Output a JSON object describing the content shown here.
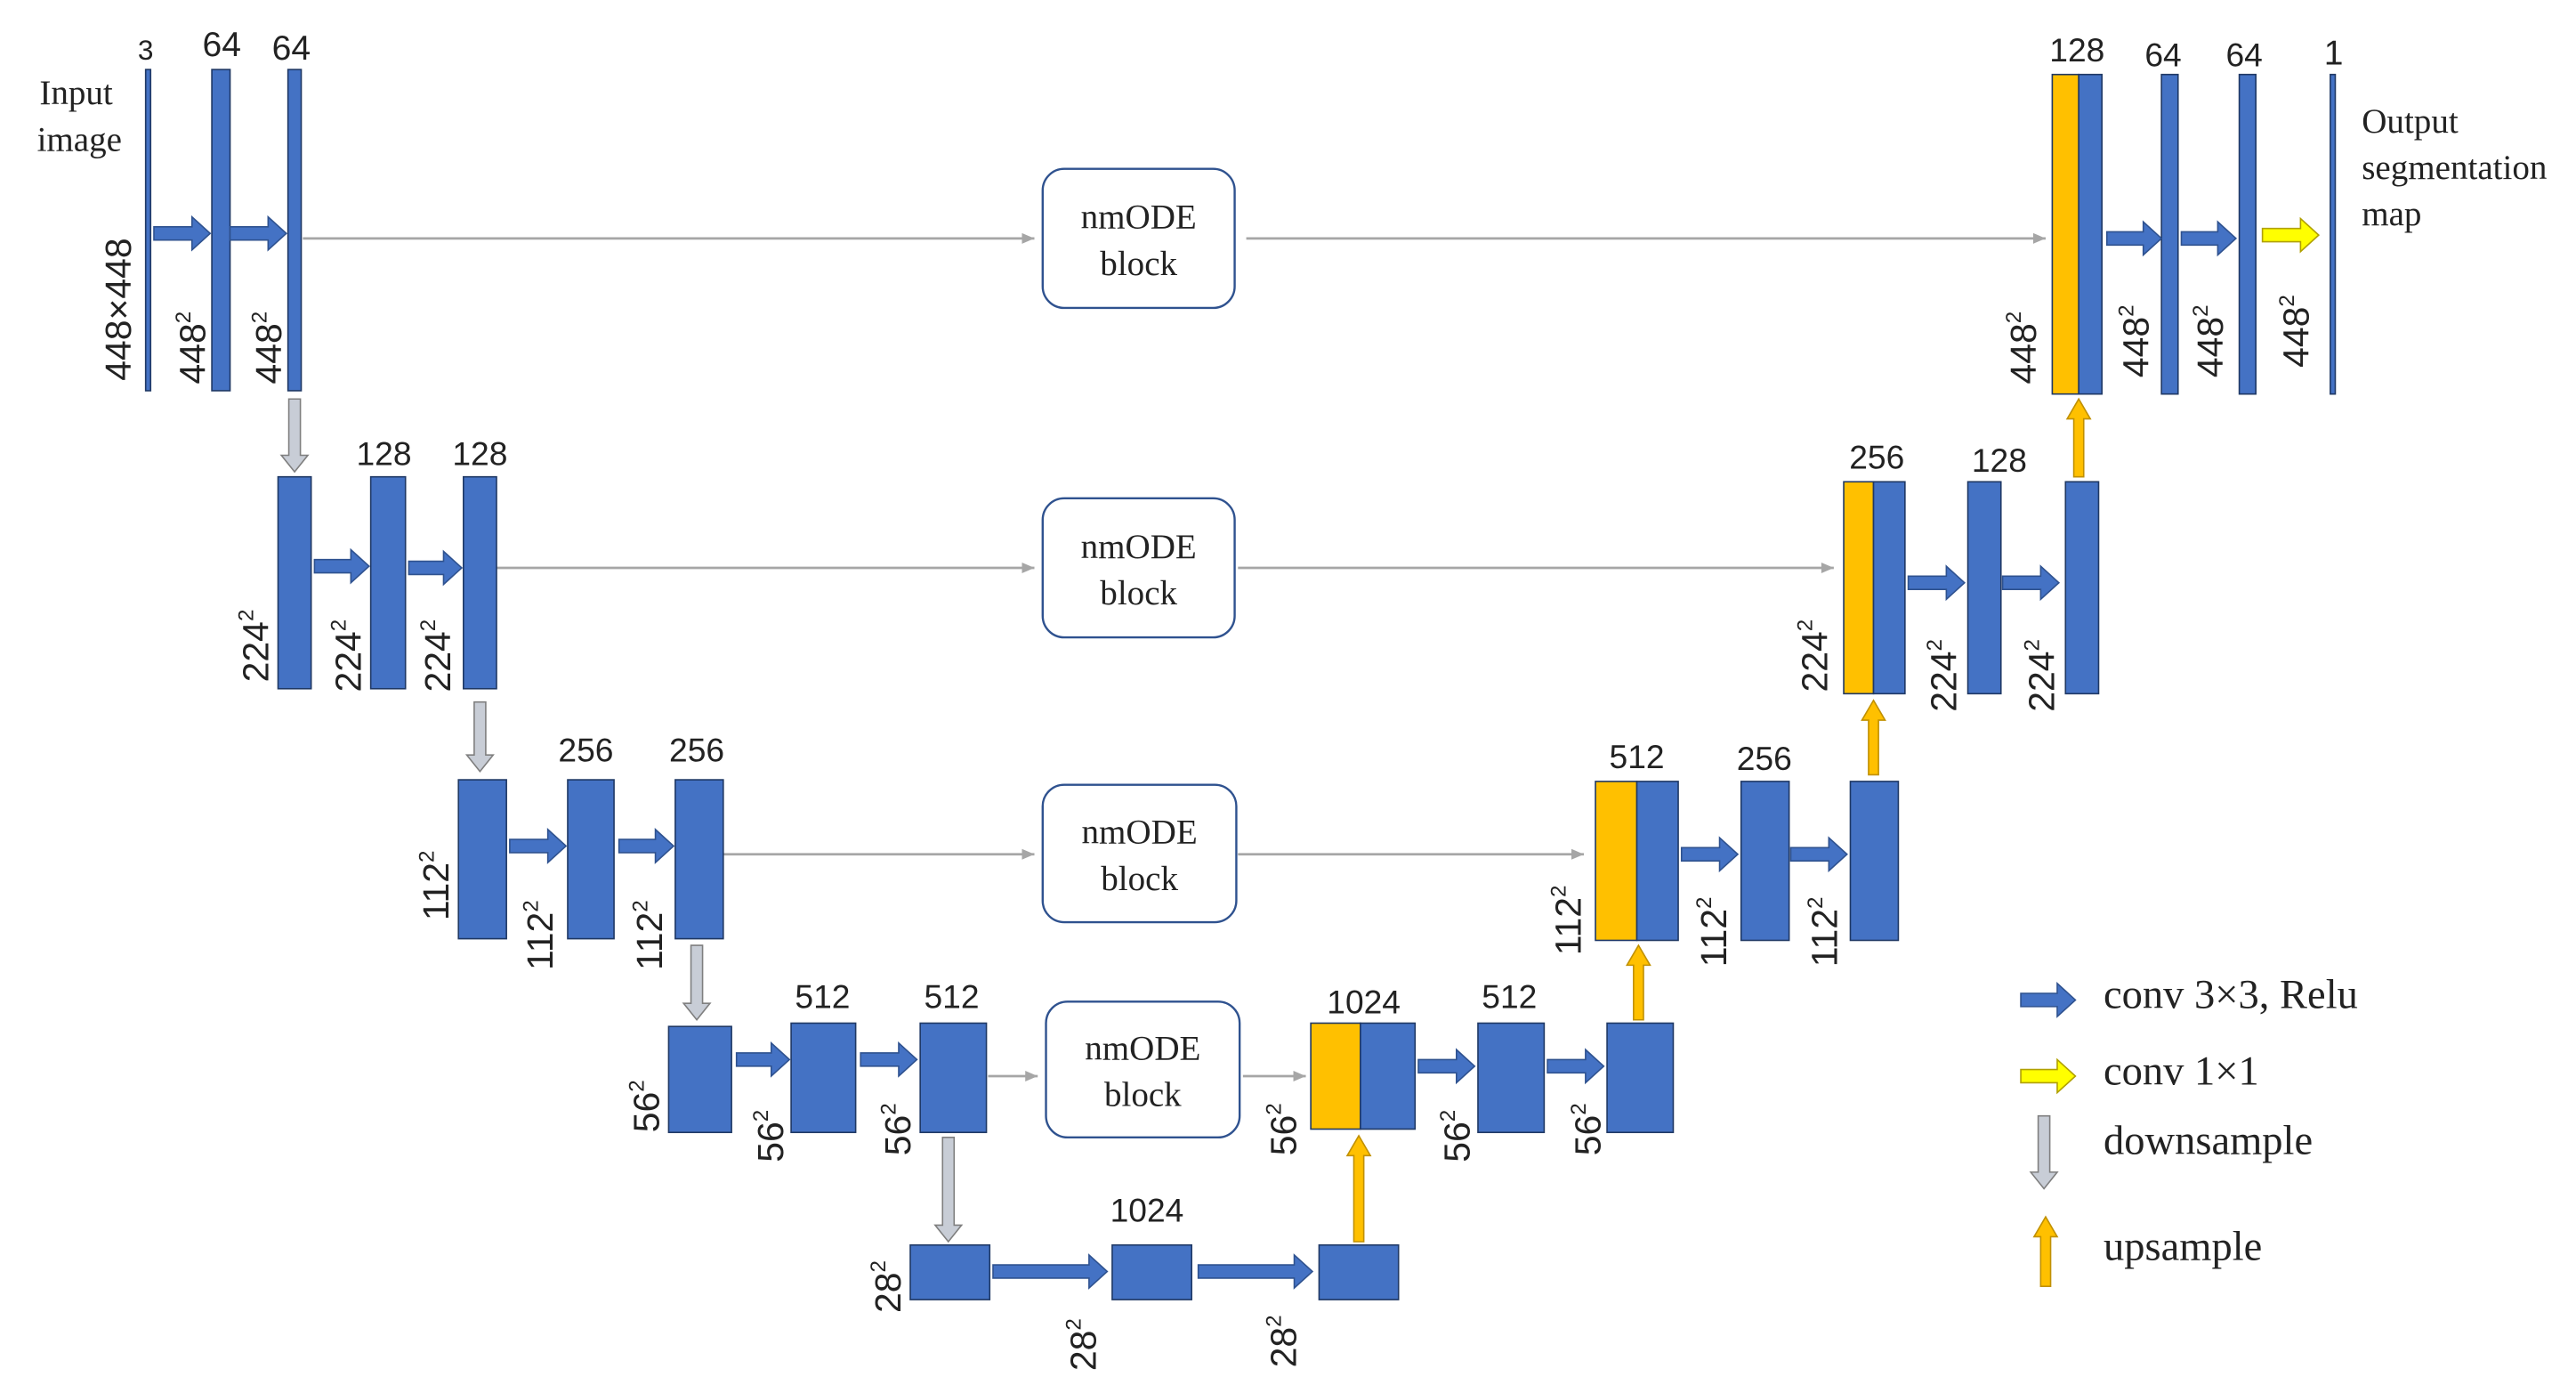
{
  "colors": {
    "feature_map": "#4472C4",
    "skip_concat": "#FFC000",
    "conv_arrow": "#4472C4",
    "conv1x1_arrow": "#FFFF00",
    "downsample_arrow": "#C8CDD6",
    "upsample_arrow": "#FFC000",
    "connection_line": "#A6A6A6",
    "text": "#222222"
  },
  "labels": {
    "input_image": [
      "Input",
      "image"
    ],
    "output_map": [
      "Output",
      "segmentation",
      "map"
    ],
    "input_size": "448×448",
    "nmode_block": [
      "nmODE",
      "block"
    ]
  },
  "channels": {
    "l1": [
      "3",
      "64",
      "64"
    ],
    "l2": [
      "128",
      "128"
    ],
    "l3": [
      "256",
      "256"
    ],
    "l4": [
      "512",
      "512"
    ],
    "bottleneck": "1024",
    "d4": [
      "1024",
      "512"
    ],
    "d3": [
      "512",
      "256"
    ],
    "d2": [
      "256",
      "128"
    ],
    "d1": [
      "128",
      "64",
      "64",
      "1"
    ]
  },
  "sizes": {
    "s448": {
      "base": "448",
      "exp": "2"
    },
    "s224": {
      "base": "224",
      "exp": "2"
    },
    "s112": {
      "base": "112",
      "exp": "2"
    },
    "s56": {
      "base": "56",
      "exp": "2"
    },
    "s28": {
      "base": "28",
      "exp": "2"
    }
  },
  "legend": {
    "conv3": "conv 3×3, Relu",
    "conv1": "conv 1×1",
    "down": "downsample",
    "up": "upsample"
  }
}
